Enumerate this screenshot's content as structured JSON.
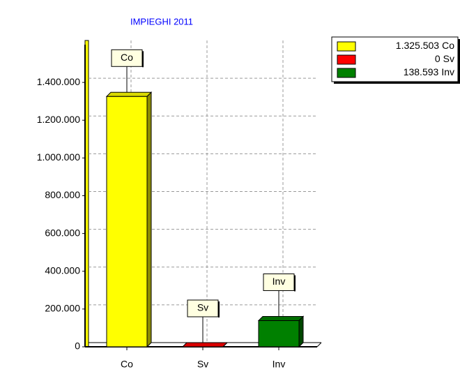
{
  "chart_data": {
    "type": "bar",
    "title": "IMPIEGHI 2011",
    "categories": [
      "Co",
      "Sv",
      "Inv"
    ],
    "values": [
      1325503,
      0,
      138593
    ],
    "value_labels": [
      "1.325.503",
      "0",
      "138.593"
    ],
    "colors": [
      "#ffff00",
      "#ff0000",
      "#008000"
    ],
    "ylim": [
      0,
      1600000
    ],
    "yticks": [
      0,
      {
        "value": 200000,
        "label": "200.000"
      },
      {
        "value": 400000,
        "label": "400.000"
      },
      {
        "value": 600000,
        "label": "600.000"
      },
      {
        "value": 800000,
        "label": "800.000"
      },
      {
        "value": 1000000,
        "label": "1.000.000"
      },
      {
        "value": 1200000,
        "label": "1.200.000"
      },
      {
        "value": 1400000,
        "label": "1.400.000"
      }
    ],
    "grid": true,
    "legend": "top-right"
  }
}
